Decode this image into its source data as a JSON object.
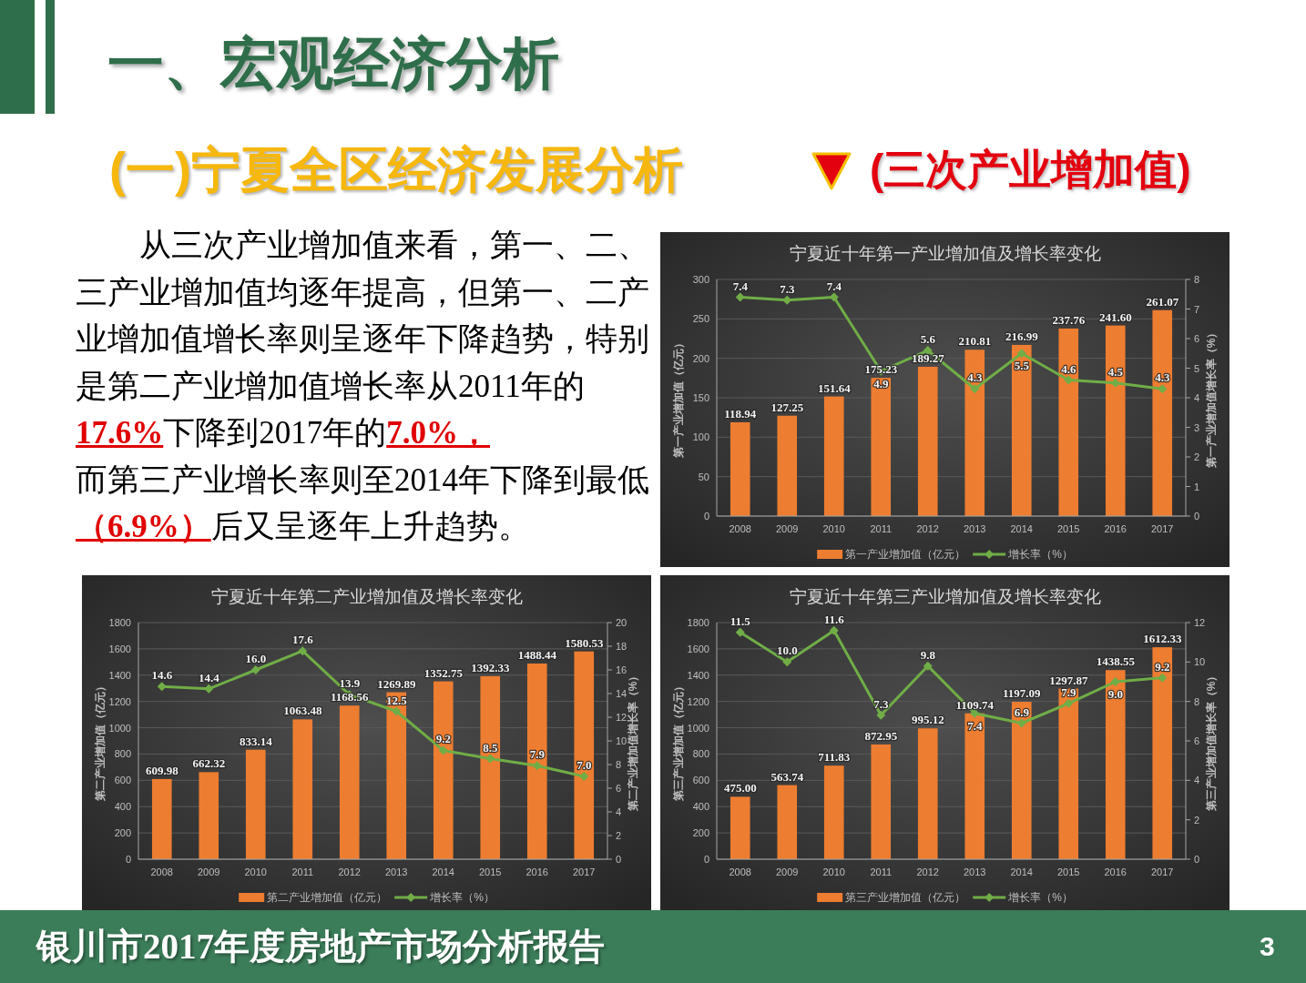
{
  "chart_data": [
    {
      "type": "other",
      "title": "一、宏观经济分析",
      "subtitle": "(一)宁夏全区经济发展分析",
      "annotations": [
        "(三次产业增加值)",
        "从三次产业增加值来看，第一、二、三产业增加值均逐年提高，但第一、二产业增加值增长率则呈逐年下降趋势，特别是第二产业增加值增长率从2011年的",
        "17.6%",
        "下降到2017年的",
        "7.0%，",
        "而第三产业增长率则至2014年下降到最低",
        "（6.9%）",
        "后又呈逐年上升趋势。",
        "银川市2017年度房地产市场分析报告",
        "3"
      ]
    },
    {
      "type": "bar",
      "title": "宁夏近十年第一产业增加值及增长率变化",
      "categories": [
        "2008",
        "2009",
        "2010",
        "2011",
        "2012",
        "2013",
        "2014",
        "2015",
        "2016",
        "2017"
      ],
      "ylabel": "第一产业增加值（亿元）",
      "y2label": "第一产业增加值增长率（%）",
      "ylim": [
        0,
        300
      ],
      "yticks": [
        0,
        50,
        100,
        150,
        200,
        250,
        300
      ],
      "y2lim": [
        0,
        8
      ],
      "y2ticks": [
        0,
        1,
        2,
        3,
        4,
        5,
        6,
        7,
        8
      ],
      "grid": "y",
      "legend": "bottom",
      "marker": "diamond",
      "series": [
        {
          "name": "第一产业增加值（亿元）",
          "type": "bar",
          "color": "#ed7d31",
          "values": [
            118.94,
            127.25,
            151.64,
            175.23,
            189.27,
            210.81,
            216.99,
            237.76,
            241.6,
            261.07
          ],
          "value_labels": [
            "118.94",
            "127.25",
            "151.64",
            "175.23",
            "189.27",
            "210.81",
            "216.99",
            "237.76",
            "241.60",
            "261.07"
          ]
        },
        {
          "name": "增长率（%）",
          "type": "line",
          "axis": "y2",
          "color": "#70ad47",
          "values": [
            7.4,
            7.3,
            7.4,
            4.9,
            5.6,
            4.3,
            5.5,
            4.6,
            4.5,
            4.3
          ],
          "value_labels": [
            "7.4",
            "7.3",
            "7.4",
            "4.9",
            "5.6",
            "4.3",
            "5.5",
            "4.6",
            "4.5",
            "4.3"
          ]
        }
      ]
    },
    {
      "type": "bar",
      "title": "宁夏近十年第二产业增加值及增长率变化",
      "categories": [
        "2008",
        "2009",
        "2010",
        "2011",
        "2012",
        "2013",
        "2014",
        "2015",
        "2016",
        "2017"
      ],
      "ylabel": "第二产业增加值（亿元）",
      "y2label": "第二产业增加值增长率（%）",
      "ylim": [
        0,
        1800
      ],
      "yticks": [
        0,
        200,
        400,
        600,
        800,
        1000,
        1200,
        1400,
        1600,
        1800
      ],
      "y2lim": [
        0,
        20
      ],
      "y2ticks": [
        0,
        2,
        4,
        6,
        8,
        10,
        12,
        14,
        16,
        18,
        20
      ],
      "grid": "y",
      "legend": "bottom",
      "marker": "diamond",
      "series": [
        {
          "name": "第二产业增加值（亿元）",
          "type": "bar",
          "color": "#ed7d31",
          "values": [
            609.98,
            662.32,
            833.14,
            1063.48,
            1168.56,
            1269.89,
            1352.75,
            1392.33,
            1488.44,
            1580.53
          ],
          "value_labels": [
            "609.98",
            "662.32",
            "833.14",
            "1063.48",
            "1168.56",
            "1269.89",
            "1352.75",
            "1392.33",
            "1488.44",
            "1580.53"
          ]
        },
        {
          "name": "增长率（%）",
          "type": "line",
          "axis": "y2",
          "color": "#70ad47",
          "values": [
            14.6,
            14.4,
            16.0,
            17.6,
            13.9,
            12.5,
            9.2,
            8.5,
            7.9,
            7.0
          ],
          "value_labels": [
            "14.6",
            "14.4",
            "16.0",
            "17.6",
            "13.9",
            "12.5",
            "9.2",
            "8.5",
            "7.9",
            "7.0"
          ]
        }
      ]
    },
    {
      "type": "bar",
      "title": "宁夏近十年第三产业增加值及增长率变化",
      "categories": [
        "2008",
        "2009",
        "2010",
        "2011",
        "2012",
        "2013",
        "2014",
        "2015",
        "2016",
        "2017"
      ],
      "ylabel": "第三产业增加值（亿元）",
      "y2label": "第三产业增加值增长率（%）",
      "ylim": [
        0,
        1800
      ],
      "yticks": [
        0,
        200,
        400,
        600,
        800,
        1000,
        1200,
        1400,
        1600,
        1800
      ],
      "y2lim": [
        0,
        12
      ],
      "y2ticks": [
        0,
        2,
        4,
        6,
        8,
        10,
        12
      ],
      "grid": "y",
      "legend": "bottom",
      "marker": "diamond",
      "series": [
        {
          "name": "第三产业增加值（亿元）",
          "type": "bar",
          "color": "#ed7d31",
          "values": [
            475.0,
            563.74,
            711.83,
            872.95,
            995.12,
            1109.74,
            1197.09,
            1297.87,
            1438.55,
            1612.33
          ],
          "value_labels": [
            "475.00",
            "563.74",
            "711.83",
            "872.95",
            "995.12",
            "1109.74",
            "1197.09",
            "1297.87",
            "1438.55",
            "1612.33"
          ]
        },
        {
          "name": "增长率（%）",
          "type": "line",
          "axis": "y2",
          "color": "#70ad47",
          "values": [
            11.5,
            10.0,
            11.6,
            7.3,
            9.8,
            7.4,
            6.9,
            7.9,
            9.0,
            9.2
          ],
          "value_labels": [
            "11.5",
            "10.0",
            "11.6",
            "7.3",
            "9.8",
            "7.4",
            "6.9",
            "7.9",
            "9.0",
            "9.2"
          ]
        }
      ]
    }
  ]
}
